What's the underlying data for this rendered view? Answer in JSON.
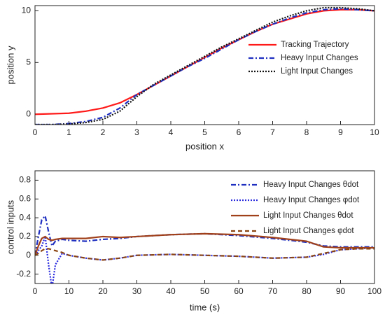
{
  "chart_data": [
    {
      "type": "line",
      "xlabel": "position x",
      "ylabel": "position y",
      "x": [
        0,
        0.5,
        1,
        1.5,
        2,
        2.5,
        3,
        3.5,
        4,
        4.5,
        5,
        5.5,
        6,
        6.5,
        7,
        7.5,
        8,
        8.5,
        9,
        9.5,
        10
      ],
      "series": [
        {
          "name": "Tracking Trajectory",
          "color": "#ff1a1a",
          "linestyle": "solid",
          "values": [
            0,
            0.05,
            0.1,
            0.3,
            0.6,
            1.1,
            1.9,
            2.8,
            3.7,
            4.6,
            5.5,
            6.4,
            7.2,
            8.0,
            8.7,
            9.2,
            9.7,
            10.0,
            10.1,
            10.1,
            10.0
          ]
        },
        {
          "name": "Heavy Input Changes",
          "color": "#1f2fbf",
          "linestyle": "dashdot",
          "values": [
            -1,
            -1,
            -0.9,
            -0.7,
            -0.3,
            0.6,
            1.9,
            2.8,
            3.7,
            4.6,
            5.4,
            6.3,
            7.2,
            8.0,
            8.7,
            9.3,
            9.8,
            10.1,
            10.2,
            10.1,
            10.0
          ]
        },
        {
          "name": "Light Input Changes",
          "color": "#111111",
          "linestyle": "dotted",
          "values": [
            -1,
            -1,
            -0.95,
            -0.8,
            -0.5,
            0.3,
            1.7,
            2.9,
            3.8,
            4.7,
            5.6,
            6.5,
            7.3,
            8.1,
            8.9,
            9.5,
            10.0,
            10.3,
            10.3,
            10.2,
            10.0
          ]
        }
      ],
      "xlim": [
        0,
        10
      ],
      "xticks": [
        0,
        1,
        2,
        3,
        4,
        5,
        6,
        7,
        8,
        9,
        10
      ],
      "ylim": [
        -1,
        10.5
      ],
      "yticks": [
        0,
        5,
        10
      ],
      "legend": "right"
    },
    {
      "type": "line",
      "xlabel": "time (s)",
      "ylabel": "control inputs",
      "x": [
        0,
        1,
        2,
        3,
        4,
        5,
        6,
        8,
        10,
        15,
        20,
        25,
        30,
        40,
        50,
        60,
        70,
        80,
        85,
        90,
        95,
        100
      ],
      "series": [
        {
          "name": "Heavy Input Changes θdot",
          "color": "#1f2fbf",
          "linestyle": "dashdot",
          "values": [
            0,
            0.2,
            0.38,
            0.42,
            0.25,
            0.1,
            0.15,
            0.17,
            0.16,
            0.15,
            0.17,
            0.18,
            0.2,
            0.22,
            0.23,
            0.21,
            0.18,
            0.14,
            0.1,
            0.09,
            0.09,
            0.09
          ]
        },
        {
          "name": "Heavy Input Changes φdot",
          "color": "#2a2adf",
          "linestyle": "dotted",
          "values": [
            0,
            0.05,
            0.1,
            0.2,
            -0.1,
            -0.35,
            -0.1,
            0.02,
            0.0,
            -0.03,
            -0.05,
            -0.03,
            0,
            0.01,
            0,
            -0.01,
            -0.03,
            -0.02,
            0.01,
            0.06,
            0.07,
            0.08
          ]
        },
        {
          "name": "Light Input Changes θdot",
          "color": "#a0401a",
          "linestyle": "solid",
          "values": [
            0,
            0.1,
            0.18,
            0.2,
            0.17,
            0.16,
            0.17,
            0.18,
            0.18,
            0.18,
            0.2,
            0.19,
            0.2,
            0.22,
            0.23,
            0.22,
            0.19,
            0.15,
            0.09,
            0.08,
            0.08,
            0.08
          ]
        },
        {
          "name": "Light Input Changes φdot",
          "color": "#8b4513",
          "linestyle": "dashed",
          "values": [
            0,
            0.02,
            0.05,
            0.07,
            0.07,
            0.06,
            0.05,
            0.03,
            0.0,
            -0.03,
            -0.05,
            -0.03,
            0,
            0.01,
            0,
            -0.01,
            -0.03,
            -0.02,
            0.02,
            0.06,
            0.07,
            0.07
          ]
        }
      ],
      "xlim": [
        0,
        100
      ],
      "xticks": [
        0,
        10,
        20,
        30,
        40,
        50,
        60,
        70,
        80,
        90,
        100
      ],
      "ylim": [
        -0.3,
        0.9
      ],
      "yticks": [
        -0.2,
        0,
        0.2,
        0.4,
        0.6,
        0.8
      ],
      "legend": "upper right"
    }
  ]
}
